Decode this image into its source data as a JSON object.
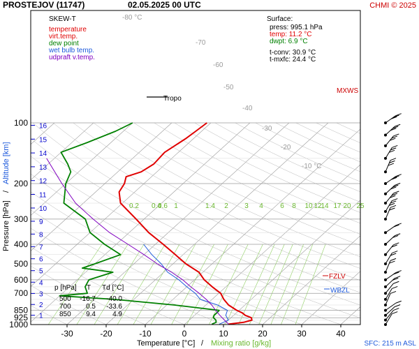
{
  "header": {
    "station": "PROSTEJOV (11747)",
    "datetime": "02.05.2025 00 UTC",
    "credit": "CHMI © 2025"
  },
  "legend": {
    "title": "SKEW-T",
    "items": [
      {
        "label": "temperature",
        "color": "#e00000"
      },
      {
        "label": "virt.temp.",
        "color": "#e00000"
      },
      {
        "label": "dew point",
        "color": "#008000"
      },
      {
        "label": "wet bulb temp.",
        "color": "#1e5adc"
      },
      {
        "label": "udpraft v.temp.",
        "color": "#8000c0"
      }
    ]
  },
  "surface": {
    "title": "Surface:",
    "press": "press: 995.1 hPa",
    "temp": "temp: 11.2 °C",
    "dwpt": "dwpt: 6.9 °C",
    "tconv": "t-conv: 30.9 °C",
    "tmxfc": "t-mxfc: 24.4 °C"
  },
  "table": {
    "headers": [
      "p [hPa]",
      "T",
      "Td [°C]"
    ],
    "rows": [
      [
        "500",
        "-16.7",
        "-40.0"
      ],
      [
        "700",
        "0.5",
        "-33.6"
      ],
      [
        "850",
        "9.4",
        "4.9"
      ]
    ]
  },
  "annotations": {
    "tropo": "Tropo",
    "mxws": "MXWS",
    "fzlv": "FZLV",
    "wbzl": "WBZL",
    "sfc": "SFC: 215 m ASL"
  },
  "axes": {
    "ylabel_left": "Pressure [hPa]",
    "ylabel_sep": "/",
    "ylabel_right": "Altitude [km]",
    "xlabel_temp": "Temperature [°C]",
    "xlabel_sep": "/",
    "xlabel_mix": "Mixing ratio [g/kg]"
  },
  "chart_data": {
    "type": "line",
    "title": "PROSTEJOV (11747) 02.05.2025 00 UTC",
    "xlabel": "Temperature [°C] / Mixing ratio [g/kg]",
    "ylabel": "Pressure [hPa] / Altitude [km]",
    "x_temp_ticks": [
      -30,
      -20,
      -10,
      0,
      10,
      20,
      30,
      40
    ],
    "pressure_ticks": [
      100,
      200,
      300,
      400,
      500,
      600,
      700,
      850,
      925,
      1000
    ],
    "altitude_ticks": [
      1,
      2,
      3,
      4,
      5,
      6,
      7,
      8,
      9,
      10,
      11,
      12,
      13,
      14,
      15,
      16
    ],
    "isotherm_labels": [
      "-80 °C",
      "-70",
      "-60",
      "-50",
      "-40",
      "-30",
      "-20",
      "-10 °C"
    ],
    "mixing_ratio_labels": [
      "0.2",
      "0.4",
      "0.6",
      "1",
      "1.4",
      "2",
      "3",
      "4",
      "6",
      "8",
      "10",
      "12",
      "14",
      "17",
      "20",
      "25"
    ],
    "series": [
      {
        "name": "temperature",
        "color": "#e00000",
        "points": [
          [
            995,
            11.2
          ],
          [
            975,
            14.5
          ],
          [
            950,
            16.0
          ],
          [
            925,
            15.2
          ],
          [
            900,
            13.0
          ],
          [
            875,
            11.5
          ],
          [
            850,
            9.4
          ],
          [
            800,
            5.8
          ],
          [
            750,
            3.0
          ],
          [
            700,
            0.5
          ],
          [
            650,
            -3.5
          ],
          [
            600,
            -7.5
          ],
          [
            550,
            -11.0
          ],
          [
            500,
            -16.7
          ],
          [
            450,
            -22.0
          ],
          [
            400,
            -28.0
          ],
          [
            350,
            -35.0
          ],
          [
            300,
            -42.0
          ],
          [
            250,
            -50.5
          ],
          [
            220,
            -54.0
          ],
          [
            200,
            -55.0
          ],
          [
            185,
            -56.5
          ],
          [
            175,
            -54.0
          ],
          [
            160,
            -53.0
          ],
          [
            140,
            -53.5
          ],
          [
            120,
            -52.0
          ],
          [
            110,
            -51.5
          ],
          [
            100,
            -51.0
          ]
        ]
      },
      {
        "name": "dew point",
        "color": "#008000",
        "points": [
          [
            995,
            6.9
          ],
          [
            975,
            7.5
          ],
          [
            950,
            6.8
          ],
          [
            925,
            5.5
          ],
          [
            900,
            5.0
          ],
          [
            875,
            5.0
          ],
          [
            850,
            4.9
          ],
          [
            800,
            -8.0
          ],
          [
            750,
            -25.0
          ],
          [
            720,
            -40.0
          ],
          [
            700,
            -33.6
          ],
          [
            650,
            -36.0
          ],
          [
            600,
            -37.0
          ],
          [
            550,
            -33.0
          ],
          [
            525,
            -42.0
          ],
          [
            500,
            -40.0
          ],
          [
            450,
            -36.0
          ],
          [
            400,
            -43.0
          ],
          [
            350,
            -50.0
          ],
          [
            300,
            -55.0
          ],
          [
            250,
            -65.0
          ],
          [
            200,
            -70.0
          ],
          [
            175,
            -72.0
          ],
          [
            160,
            -75.0
          ],
          [
            140,
            -80.0
          ],
          [
            125,
            -76.0
          ],
          [
            110,
            -72.0
          ],
          [
            100,
            -70.0
          ]
        ]
      },
      {
        "name": "wet bulb temp.",
        "color": "#1e5adc",
        "points": [
          [
            995,
            8.8
          ],
          [
            950,
            10.0
          ],
          [
            900,
            8.0
          ],
          [
            850,
            7.0
          ],
          [
            800,
            3.0
          ],
          [
            750,
            -3.0
          ],
          [
            700,
            -6.0
          ],
          [
            650,
            -10.0
          ],
          [
            600,
            -14.0
          ],
          [
            550,
            -19.0
          ],
          [
            500,
            -23.0
          ],
          [
            450,
            -28.0
          ],
          [
            400,
            -33.0
          ]
        ]
      },
      {
        "name": "udpraft v.temp.",
        "color": "#8000c0",
        "points": [
          [
            995,
            11.2
          ],
          [
            950,
            9.0
          ],
          [
            900,
            6.5
          ],
          [
            850,
            4.0
          ],
          [
            800,
            1.5
          ],
          [
            750,
            -1.5
          ],
          [
            700,
            -5.0
          ],
          [
            650,
            -9.0
          ],
          [
            600,
            -13.0
          ],
          [
            550,
            -18.0
          ],
          [
            500,
            -24.0
          ],
          [
            450,
            -30.0
          ],
          [
            400,
            -37.0
          ],
          [
            350,
            -45.0
          ],
          [
            300,
            -53.0
          ],
          [
            250,
            -62.0
          ],
          [
            200,
            -71.0
          ],
          [
            150,
            -82.0
          ]
        ]
      }
    ]
  }
}
